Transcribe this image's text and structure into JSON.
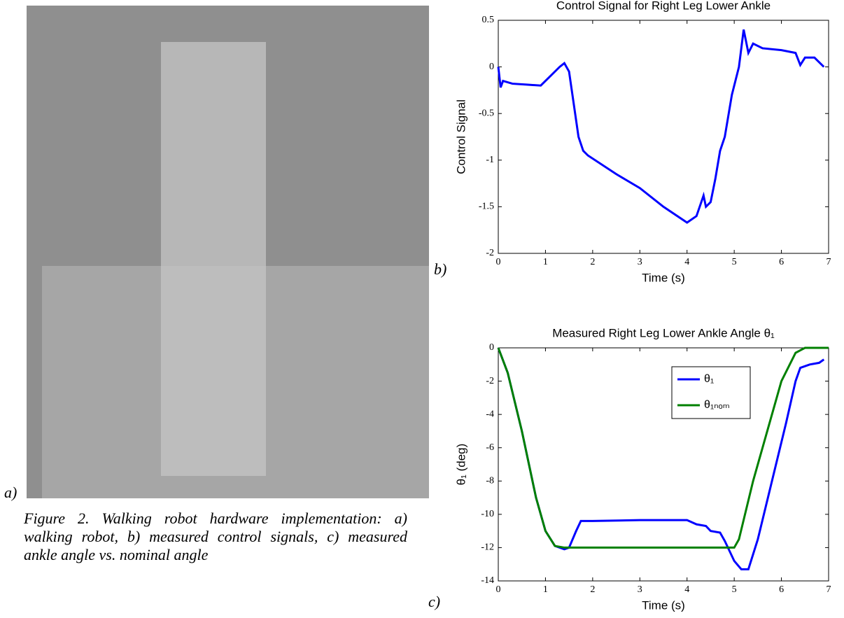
{
  "figure": {
    "label_a": "a)",
    "label_b": "b)",
    "label_c": "c)",
    "caption": "Figure 2. Walking robot hardware implementation: a) walking robot, b) measured control signals, c) measured ankle angle vs. nominal angle"
  },
  "chart_data": [
    {
      "type": "line",
      "title": "Control Signal for Right Leg Lower Ankle",
      "xlabel": "Time (s)",
      "ylabel": "Control Signal",
      "xlim": [
        0,
        7
      ],
      "ylim": [
        -2,
        0.5
      ],
      "xticks": [
        0,
        1,
        2,
        3,
        4,
        5,
        6,
        7
      ],
      "yticks": [
        -2,
        -1.5,
        -1,
        -0.5,
        0,
        0.5
      ],
      "series": [
        {
          "name": "Control Signal",
          "color": "#0000ff",
          "x": [
            0,
            0.05,
            0.1,
            0.3,
            0.6,
            0.9,
            1.1,
            1.3,
            1.4,
            1.5,
            1.6,
            1.7,
            1.8,
            1.9,
            2.5,
            3,
            3.5,
            4,
            4.2,
            4.35,
            4.4,
            4.5,
            4.6,
            4.7,
            4.8,
            4.95,
            5.1,
            5.2,
            5.3,
            5.4,
            5.6,
            6,
            6.3,
            6.4,
            6.5,
            6.7,
            6.9
          ],
          "values": [
            0,
            -0.22,
            -0.15,
            -0.18,
            -0.19,
            -0.2,
            -0.1,
            0,
            0.04,
            -0.05,
            -0.4,
            -0.75,
            -0.9,
            -0.95,
            -1.15,
            -1.3,
            -1.5,
            -1.67,
            -1.6,
            -1.38,
            -1.5,
            -1.45,
            -1.2,
            -0.9,
            -0.75,
            -0.3,
            0,
            0.4,
            0.15,
            0.25,
            0.2,
            0.18,
            0.15,
            0.02,
            0.1,
            0.1,
            0
          ]
        }
      ]
    },
    {
      "type": "line",
      "title": "Measured Right Leg Lower Ankle Angle θ₁",
      "xlabel": "Time (s)",
      "ylabel": "θ₁ (deg)",
      "xlim": [
        0,
        7
      ],
      "ylim": [
        -14,
        0
      ],
      "xticks": [
        0,
        1,
        2,
        3,
        4,
        5,
        6,
        7
      ],
      "yticks": [
        -14,
        -12,
        -10,
        -8,
        -6,
        -4,
        -2,
        0
      ],
      "legend": "upper right",
      "series": [
        {
          "name": "θ₁",
          "color": "#0000ff",
          "x": [
            0,
            0.2,
            0.5,
            0.8,
            1.0,
            1.2,
            1.4,
            1.5,
            1.65,
            1.75,
            2,
            3,
            4,
            4.2,
            4.4,
            4.5,
            4.7,
            4.8,
            5,
            5.15,
            5.3,
            5.5,
            5.8,
            6.1,
            6.3,
            6.4,
            6.6,
            6.8,
            6.9
          ],
          "values": [
            0,
            -1.5,
            -5,
            -9,
            -11,
            -11.9,
            -12.1,
            -12,
            -11,
            -10.4,
            -10.4,
            -10.35,
            -10.35,
            -10.6,
            -10.7,
            -11,
            -11.1,
            -11.6,
            -12.8,
            -13.3,
            -13.3,
            -11.5,
            -8,
            -4.5,
            -2,
            -1.2,
            -1,
            -0.9,
            -0.7
          ]
        },
        {
          "name": "θ₁ₙₒₘ",
          "color": "#008000",
          "x": [
            0,
            0.2,
            0.5,
            0.8,
            1.0,
            1.2,
            1.4,
            5,
            5.1,
            5.4,
            5.7,
            6,
            6.3,
            6.5,
            7
          ],
          "values": [
            0,
            -1.5,
            -5,
            -9,
            -11,
            -11.9,
            -12,
            -12,
            -11.5,
            -8,
            -5,
            -2,
            -0.3,
            0,
            0
          ]
        }
      ]
    }
  ]
}
